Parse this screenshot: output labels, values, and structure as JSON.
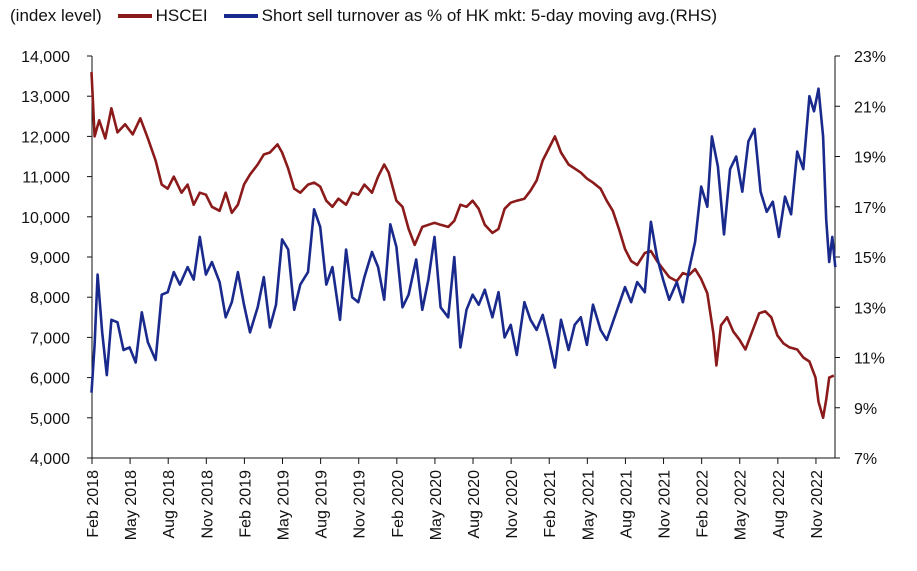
{
  "chart_data": {
    "type": "line",
    "left_axis_label": "(index level)",
    "series": [
      {
        "name": "HSCEI",
        "axis": "left",
        "color": "#8b1a1a",
        "points": [
          [
            2018.08,
            13600
          ],
          [
            2018.1,
            12000
          ],
          [
            2018.13,
            12400
          ],
          [
            2018.17,
            11950
          ],
          [
            2018.21,
            12700
          ],
          [
            2018.25,
            12100
          ],
          [
            2018.3,
            12300
          ],
          [
            2018.35,
            12050
          ],
          [
            2018.4,
            12450
          ],
          [
            2018.45,
            11950
          ],
          [
            2018.5,
            11400
          ],
          [
            2018.54,
            10800
          ],
          [
            2018.58,
            10700
          ],
          [
            2018.62,
            11000
          ],
          [
            2018.67,
            10600
          ],
          [
            2018.71,
            10800
          ],
          [
            2018.75,
            10300
          ],
          [
            2018.79,
            10600
          ],
          [
            2018.83,
            10550
          ],
          [
            2018.87,
            10250
          ],
          [
            2018.92,
            10150
          ],
          [
            2018.96,
            10600
          ],
          [
            2019.0,
            10100
          ],
          [
            2019.04,
            10300
          ],
          [
            2019.08,
            10800
          ],
          [
            2019.12,
            11050
          ],
          [
            2019.17,
            11300
          ],
          [
            2019.21,
            11550
          ],
          [
            2019.25,
            11600
          ],
          [
            2019.3,
            11800
          ],
          [
            2019.33,
            11600
          ],
          [
            2019.37,
            11200
          ],
          [
            2019.41,
            10700
          ],
          [
            2019.45,
            10600
          ],
          [
            2019.5,
            10800
          ],
          [
            2019.54,
            10850
          ],
          [
            2019.58,
            10750
          ],
          [
            2019.62,
            10400
          ],
          [
            2019.66,
            10250
          ],
          [
            2019.7,
            10450
          ],
          [
            2019.75,
            10300
          ],
          [
            2019.79,
            10600
          ],
          [
            2019.83,
            10550
          ],
          [
            2019.87,
            10800
          ],
          [
            2019.92,
            10600
          ],
          [
            2019.96,
            11000
          ],
          [
            2020.0,
            11300
          ],
          [
            2020.03,
            11100
          ],
          [
            2020.08,
            10400
          ],
          [
            2020.12,
            10250
          ],
          [
            2020.16,
            9700
          ],
          [
            2020.2,
            9300
          ],
          [
            2020.25,
            9750
          ],
          [
            2020.29,
            9800
          ],
          [
            2020.33,
            9850
          ],
          [
            2020.37,
            9800
          ],
          [
            2020.42,
            9750
          ],
          [
            2020.46,
            9900
          ],
          [
            2020.5,
            10300
          ],
          [
            2020.54,
            10250
          ],
          [
            2020.58,
            10400
          ],
          [
            2020.62,
            10200
          ],
          [
            2020.66,
            9800
          ],
          [
            2020.71,
            9600
          ],
          [
            2020.75,
            9700
          ],
          [
            2020.79,
            10200
          ],
          [
            2020.83,
            10350
          ],
          [
            2020.87,
            10400
          ],
          [
            2020.92,
            10450
          ],
          [
            2020.96,
            10650
          ],
          [
            2021.0,
            10900
          ],
          [
            2021.04,
            11400
          ],
          [
            2021.08,
            11700
          ],
          [
            2021.12,
            12000
          ],
          [
            2021.16,
            11600
          ],
          [
            2021.21,
            11300
          ],
          [
            2021.25,
            11200
          ],
          [
            2021.29,
            11100
          ],
          [
            2021.33,
            10950
          ],
          [
            2021.37,
            10850
          ],
          [
            2021.42,
            10700
          ],
          [
            2021.46,
            10400
          ],
          [
            2021.5,
            10150
          ],
          [
            2021.54,
            9700
          ],
          [
            2021.58,
            9200
          ],
          [
            2021.62,
            8900
          ],
          [
            2021.66,
            8800
          ],
          [
            2021.71,
            9100
          ],
          [
            2021.75,
            9150
          ],
          [
            2021.79,
            8900
          ],
          [
            2021.83,
            8700
          ],
          [
            2021.87,
            8500
          ],
          [
            2021.92,
            8400
          ],
          [
            2021.96,
            8600
          ],
          [
            2022.0,
            8550
          ],
          [
            2022.04,
            8700
          ],
          [
            2022.08,
            8450
          ],
          [
            2022.12,
            8100
          ],
          [
            2022.16,
            7100
          ],
          [
            2022.18,
            6300
          ],
          [
            2022.21,
            7300
          ],
          [
            2022.25,
            7500
          ],
          [
            2022.29,
            7150
          ],
          [
            2022.33,
            6950
          ],
          [
            2022.37,
            6700
          ],
          [
            2022.42,
            7200
          ],
          [
            2022.46,
            7600
          ],
          [
            2022.5,
            7650
          ],
          [
            2022.54,
            7500
          ],
          [
            2022.58,
            7050
          ],
          [
            2022.62,
            6850
          ],
          [
            2022.66,
            6750
          ],
          [
            2022.71,
            6700
          ],
          [
            2022.75,
            6500
          ],
          [
            2022.79,
            6400
          ],
          [
            2022.83,
            6000
          ],
          [
            2022.85,
            5400
          ],
          [
            2022.88,
            5000
          ],
          [
            2022.9,
            5450
          ],
          [
            2022.92,
            6000
          ],
          [
            2022.95,
            6050
          ]
        ]
      },
      {
        "name": "Short sell turnover as % of HK mkt: 5-day moving avg.(RHS)",
        "axis": "right",
        "color": "#1a2a8c",
        "points": [
          [
            2018.08,
            9.6
          ],
          [
            2018.1,
            11.5
          ],
          [
            2018.12,
            14.3
          ],
          [
            2018.15,
            12.0
          ],
          [
            2018.18,
            10.3
          ],
          [
            2018.21,
            12.5
          ],
          [
            2018.25,
            12.4
          ],
          [
            2018.29,
            11.3
          ],
          [
            2018.33,
            11.4
          ],
          [
            2018.37,
            10.8
          ],
          [
            2018.41,
            12.8
          ],
          [
            2018.45,
            11.6
          ],
          [
            2018.5,
            10.9
          ],
          [
            2018.54,
            13.5
          ],
          [
            2018.58,
            13.6
          ],
          [
            2018.62,
            14.4
          ],
          [
            2018.66,
            13.9
          ],
          [
            2018.71,
            14.6
          ],
          [
            2018.75,
            14.1
          ],
          [
            2018.79,
            15.8
          ],
          [
            2018.83,
            14.3
          ],
          [
            2018.87,
            14.8
          ],
          [
            2018.92,
            14.0
          ],
          [
            2018.96,
            12.6
          ],
          [
            2019.0,
            13.2
          ],
          [
            2019.04,
            14.4
          ],
          [
            2019.08,
            13.1
          ],
          [
            2019.12,
            12.0
          ],
          [
            2019.17,
            13.0
          ],
          [
            2019.21,
            14.2
          ],
          [
            2019.25,
            12.2
          ],
          [
            2019.29,
            13.1
          ],
          [
            2019.33,
            15.7
          ],
          [
            2019.37,
            15.3
          ],
          [
            2019.41,
            12.9
          ],
          [
            2019.45,
            13.9
          ],
          [
            2019.5,
            14.4
          ],
          [
            2019.54,
            16.9
          ],
          [
            2019.58,
            16.2
          ],
          [
            2019.62,
            13.9
          ],
          [
            2019.66,
            14.6
          ],
          [
            2019.71,
            12.5
          ],
          [
            2019.75,
            15.3
          ],
          [
            2019.79,
            13.4
          ],
          [
            2019.83,
            13.2
          ],
          [
            2019.87,
            14.2
          ],
          [
            2019.92,
            15.2
          ],
          [
            2019.96,
            14.6
          ],
          [
            2020.0,
            13.3
          ],
          [
            2020.04,
            16.3
          ],
          [
            2020.08,
            15.4
          ],
          [
            2020.12,
            13.0
          ],
          [
            2020.16,
            13.5
          ],
          [
            2020.21,
            14.9
          ],
          [
            2020.25,
            12.9
          ],
          [
            2020.29,
            14.1
          ],
          [
            2020.33,
            15.8
          ],
          [
            2020.37,
            13.0
          ],
          [
            2020.42,
            12.6
          ],
          [
            2020.46,
            15.0
          ],
          [
            2020.5,
            11.4
          ],
          [
            2020.54,
            12.9
          ],
          [
            2020.58,
            13.5
          ],
          [
            2020.62,
            13.1
          ],
          [
            2020.66,
            13.7
          ],
          [
            2020.71,
            12.6
          ],
          [
            2020.75,
            13.6
          ],
          [
            2020.79,
            11.8
          ],
          [
            2020.83,
            12.3
          ],
          [
            2020.87,
            11.1
          ],
          [
            2020.92,
            13.2
          ],
          [
            2020.96,
            12.5
          ],
          [
            2021.0,
            12.1
          ],
          [
            2021.04,
            12.7
          ],
          [
            2021.08,
            11.7
          ],
          [
            2021.12,
            10.6
          ],
          [
            2021.16,
            12.5
          ],
          [
            2021.21,
            11.3
          ],
          [
            2021.25,
            12.3
          ],
          [
            2021.29,
            12.6
          ],
          [
            2021.33,
            11.5
          ],
          [
            2021.37,
            13.1
          ],
          [
            2021.42,
            12.1
          ],
          [
            2021.46,
            11.7
          ],
          [
            2021.5,
            12.4
          ],
          [
            2021.54,
            13.1
          ],
          [
            2021.58,
            13.8
          ],
          [
            2021.62,
            13.2
          ],
          [
            2021.66,
            14.0
          ],
          [
            2021.71,
            13.6
          ],
          [
            2021.75,
            16.4
          ],
          [
            2021.79,
            15.0
          ],
          [
            2021.83,
            14.1
          ],
          [
            2021.87,
            13.3
          ],
          [
            2021.92,
            14.0
          ],
          [
            2021.96,
            13.2
          ],
          [
            2022.0,
            14.5
          ],
          [
            2022.04,
            15.6
          ],
          [
            2022.08,
            17.8
          ],
          [
            2022.12,
            17.0
          ],
          [
            2022.15,
            19.8
          ],
          [
            2022.19,
            18.6
          ],
          [
            2022.23,
            15.9
          ],
          [
            2022.27,
            18.5
          ],
          [
            2022.31,
            19.0
          ],
          [
            2022.35,
            17.6
          ],
          [
            2022.39,
            19.6
          ],
          [
            2022.43,
            20.1
          ],
          [
            2022.47,
            17.6
          ],
          [
            2022.51,
            16.8
          ],
          [
            2022.55,
            17.2
          ],
          [
            2022.59,
            15.8
          ],
          [
            2022.63,
            17.4
          ],
          [
            2022.67,
            16.7
          ],
          [
            2022.71,
            19.2
          ],
          [
            2022.75,
            18.5
          ],
          [
            2022.79,
            21.4
          ],
          [
            2022.82,
            20.8
          ],
          [
            2022.85,
            21.7
          ],
          [
            2022.88,
            19.8
          ],
          [
            2022.9,
            16.5
          ],
          [
            2022.92,
            14.8
          ],
          [
            2022.94,
            15.8
          ],
          [
            2022.96,
            14.6
          ]
        ]
      }
    ],
    "x_ticks": [
      {
        "label": "Feb 2018",
        "x": 2018.083
      },
      {
        "label": "May 2018",
        "x": 2018.333
      },
      {
        "label": "Aug 2018",
        "x": 2018.583
      },
      {
        "label": "Nov 2018",
        "x": 2018.833
      },
      {
        "label": "Feb 2019",
        "x": 2019.083
      },
      {
        "label": "May 2019",
        "x": 2019.333
      },
      {
        "label": "Aug 2019",
        "x": 2019.583
      },
      {
        "label": "Nov 2019",
        "x": 2019.833
      },
      {
        "label": "Feb 2020",
        "x": 2020.083
      },
      {
        "label": "May 2020",
        "x": 2020.333
      },
      {
        "label": "Aug 2020",
        "x": 2020.583
      },
      {
        "label": "Nov 2020",
        "x": 2020.833
      },
      {
        "label": "Feb 2021",
        "x": 2021.083
      },
      {
        "label": "May 2021",
        "x": 2021.333
      },
      {
        "label": "Aug 2021",
        "x": 2021.583
      },
      {
        "label": "Nov 2021",
        "x": 2021.833
      },
      {
        "label": "Feb 2022",
        "x": 2022.083
      },
      {
        "label": "May 2022",
        "x": 2022.333
      },
      {
        "label": "Aug 2022",
        "x": 2022.583
      },
      {
        "label": "Nov 2022",
        "x": 2022.833
      }
    ],
    "left_ticks": [
      "4,000",
      "5,000",
      "6,000",
      "7,000",
      "8,000",
      "9,000",
      "10,000",
      "11,000",
      "12,000",
      "13,000",
      "14,000"
    ],
    "right_ticks": [
      "7%",
      "9%",
      "11%",
      "13%",
      "15%",
      "17%",
      "19%",
      "21%",
      "23%"
    ],
    "left_ylim": [
      4000,
      14000
    ],
    "right_ylim": [
      7,
      23
    ],
    "xlim": [
      2018.083,
      2022.958
    ],
    "grid": false,
    "legend_position": "top-left"
  }
}
